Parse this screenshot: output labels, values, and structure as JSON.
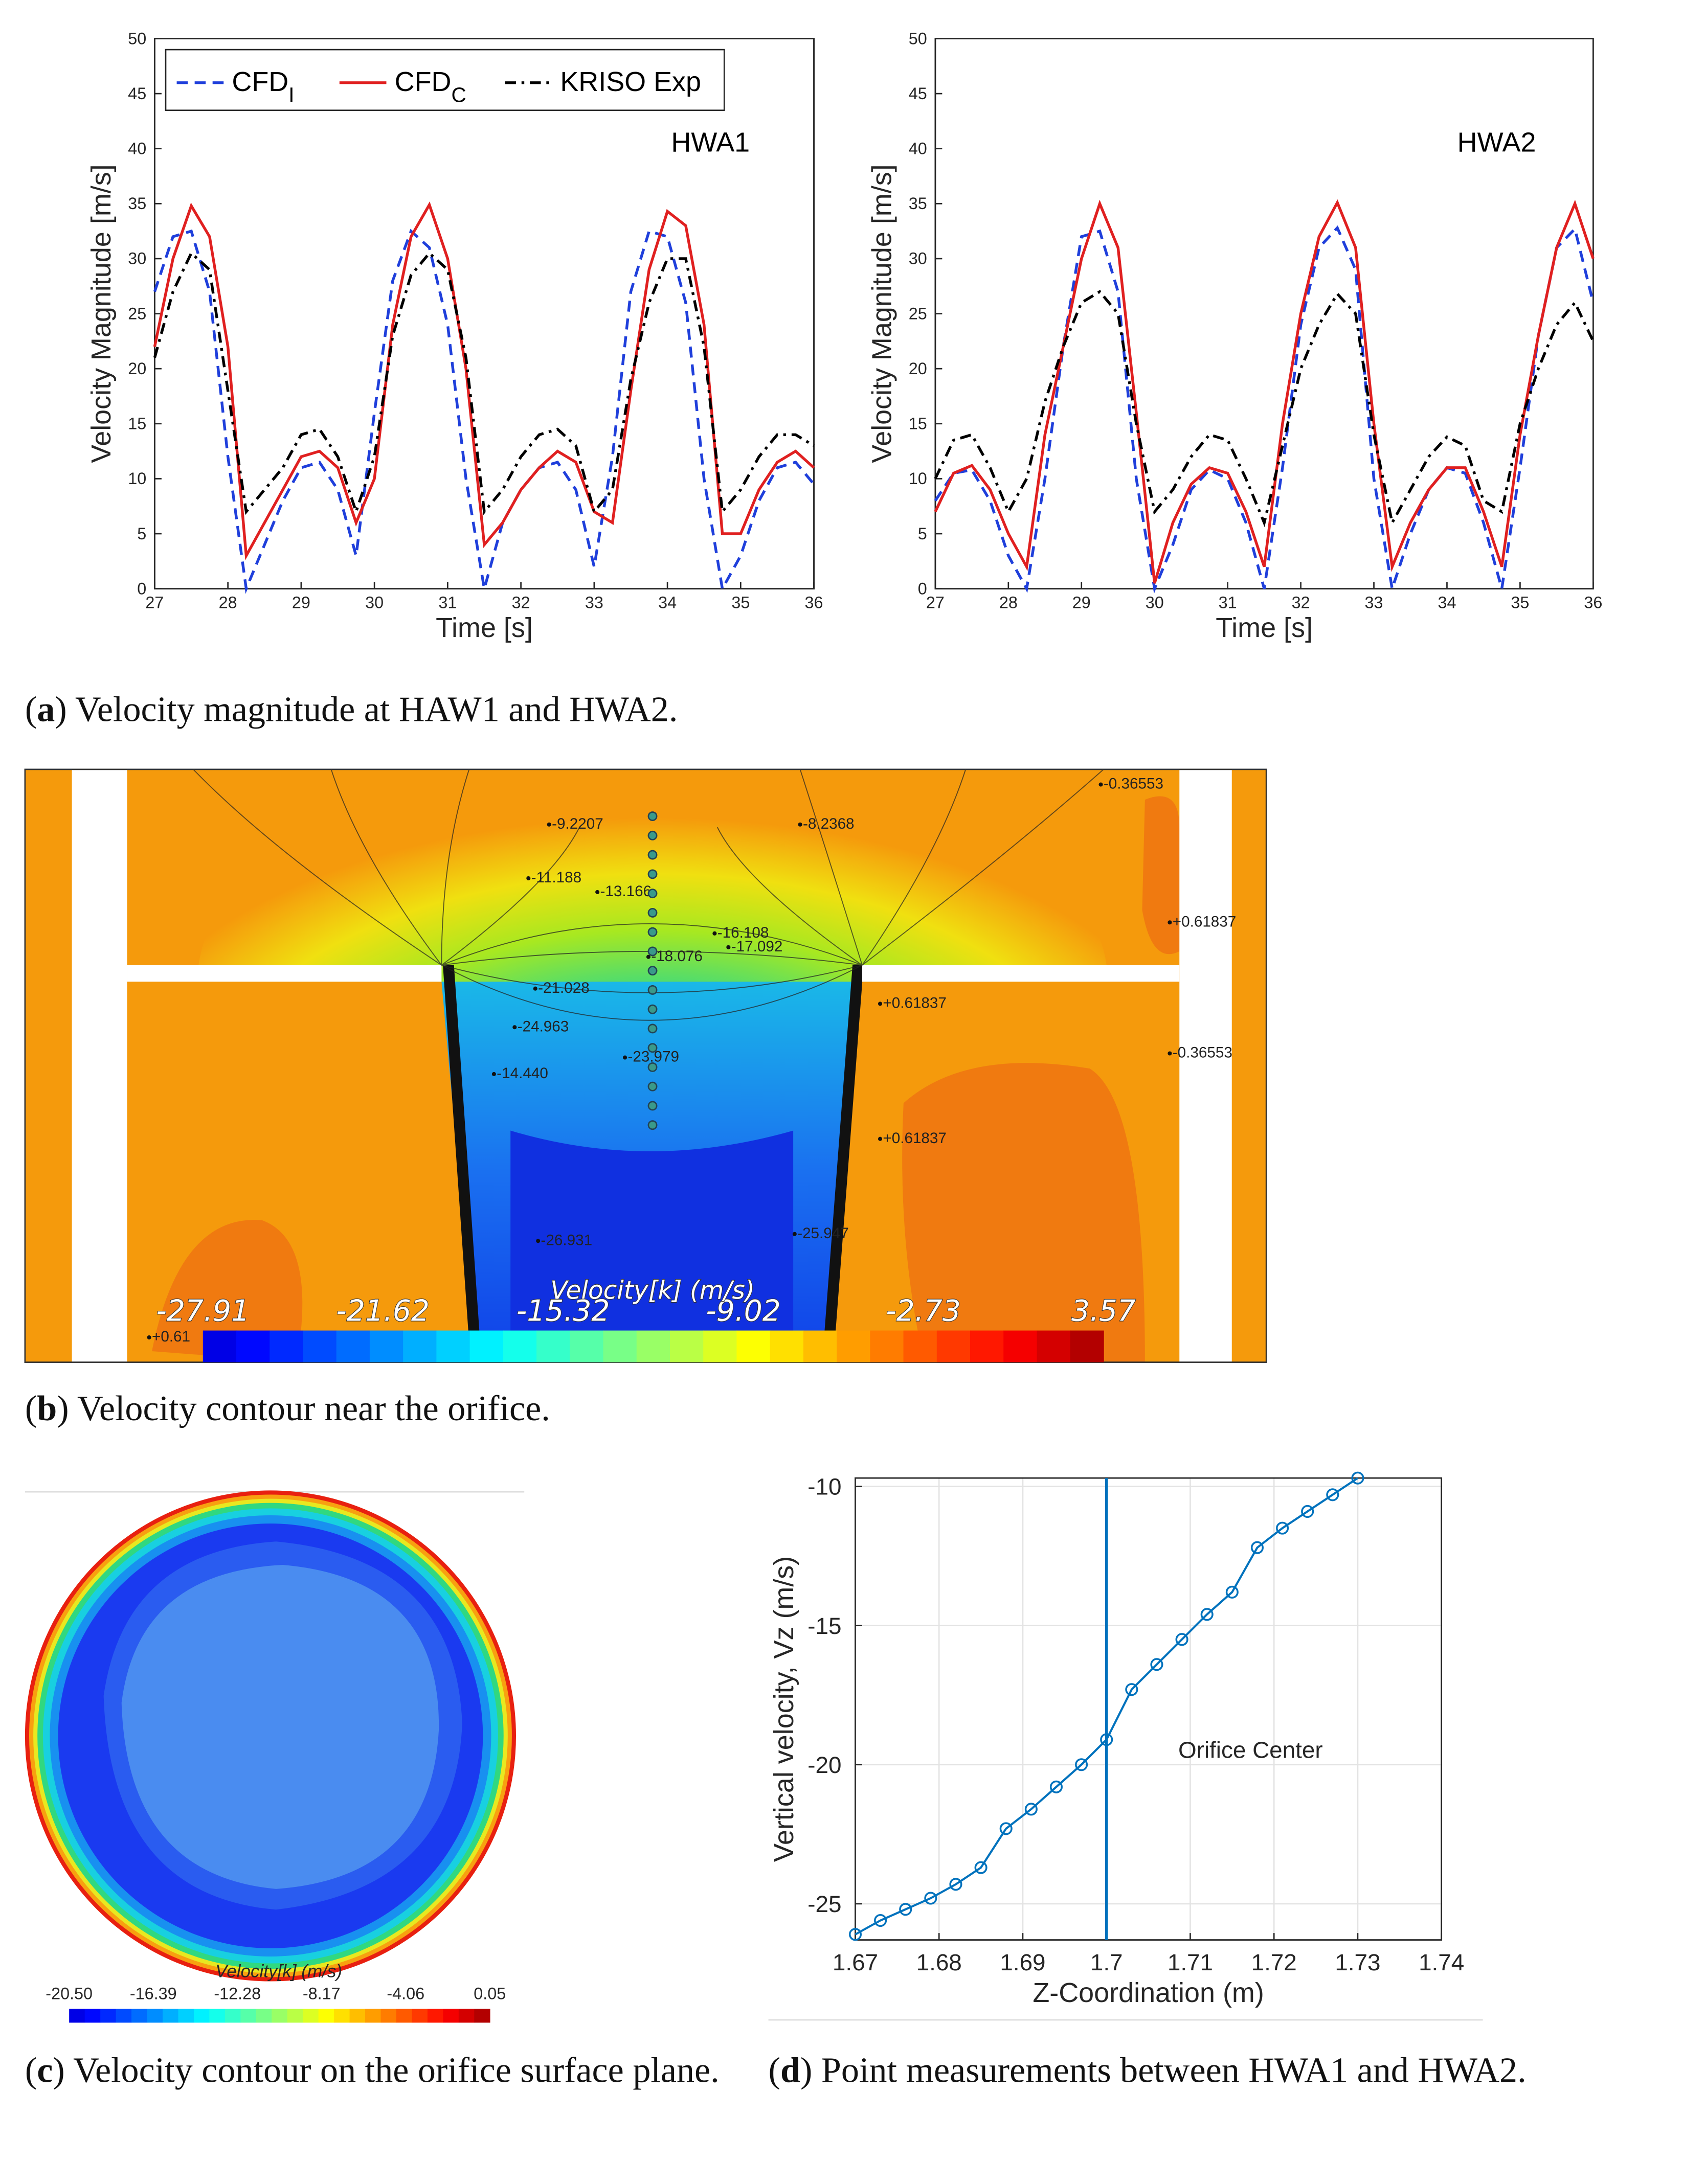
{
  "chart_data": [
    {
      "type": "line",
      "title": "HWA1",
      "xlabel": "Time [s]",
      "ylabel": "Velocity Magnitude [m/s]",
      "x": [
        27,
        27.25,
        27.5,
        27.75,
        28,
        28.25,
        28.5,
        28.75,
        29,
        29.25,
        29.5,
        29.75,
        30,
        30.25,
        30.5,
        30.75,
        31,
        31.25,
        31.5,
        31.75,
        32,
        32.25,
        32.5,
        32.75,
        33,
        33.25,
        33.5,
        33.75,
        34,
        34.25,
        34.5,
        34.75,
        35,
        35.25,
        35.5,
        35.75,
        36
      ],
      "series": [
        {
          "name": "CFD",
          "name_sub": "I",
          "color": "#1f3fdb",
          "dash": "dashed",
          "values": [
            27,
            32,
            32.5,
            27,
            12,
            0,
            4,
            8,
            11,
            11.5,
            9,
            3,
            16,
            28,
            32.5,
            31,
            24,
            10,
            0,
            6,
            9,
            11,
            11.5,
            9,
            2,
            12,
            27,
            32.5,
            32,
            26,
            10,
            0,
            3,
            8,
            11,
            11.5,
            9.5
          ]
        },
        {
          "name": "CFD",
          "name_sub": "C",
          "color": "#e02020",
          "dash": "solid",
          "values": [
            22,
            30,
            34.8,
            32,
            22,
            3,
            6,
            9,
            12,
            12.5,
            11,
            6,
            10,
            24,
            32,
            34.9,
            30,
            20,
            4,
            6,
            9,
            11,
            12.5,
            11.5,
            7,
            6,
            18,
            29,
            34.3,
            33,
            24,
            5,
            5,
            9,
            11.5,
            12.5,
            11
          ]
        },
        {
          "name": "KRISO Exp",
          "color": "#000000",
          "dash": "dashdot",
          "values": [
            21,
            27,
            30.5,
            29,
            18,
            7,
            9,
            11,
            14,
            14.5,
            12,
            7,
            12,
            23,
            28.5,
            30.5,
            29,
            21,
            7,
            9,
            12,
            14,
            14.5,
            13,
            7,
            9,
            19,
            26,
            30,
            30,
            22,
            7,
            9,
            12,
            14,
            14,
            13
          ]
        }
      ],
      "xlim": [
        27,
        36
      ],
      "ylim": [
        0,
        50
      ],
      "xticks": [
        27,
        28,
        29,
        30,
        31,
        32,
        33,
        34,
        35,
        36
      ],
      "yticks": [
        0,
        5,
        10,
        15,
        20,
        25,
        30,
        35,
        40,
        45,
        50
      ],
      "legend": "upper left"
    },
    {
      "type": "line",
      "title": "HWA2",
      "xlabel": "Time [s]",
      "ylabel": "Velocity Magnitude [m/s]",
      "x": [
        27,
        27.25,
        27.5,
        27.75,
        28,
        28.25,
        28.5,
        28.75,
        29,
        29.25,
        29.5,
        29.75,
        30,
        30.25,
        30.5,
        30.75,
        31,
        31.25,
        31.5,
        31.75,
        32,
        32.25,
        32.5,
        32.75,
        33,
        33.25,
        33.5,
        33.75,
        34,
        34.25,
        34.5,
        34.75,
        35,
        35.25,
        35.5,
        35.75,
        36
      ],
      "series": [
        {
          "color": "#1f3fdb",
          "dash": "dashed",
          "values": [
            8,
            10.5,
            10.8,
            8,
            3,
            0,
            10,
            22,
            32,
            32.5,
            27,
            10,
            0,
            4,
            9,
            10.8,
            10,
            6,
            0,
            11,
            24,
            31,
            32.8,
            29,
            10,
            0,
            5,
            9,
            11,
            10.5,
            6,
            0,
            11,
            23,
            31,
            32.7,
            26
          ]
        },
        {
          "color": "#e02020",
          "dash": "solid",
          "values": [
            7,
            10.5,
            11.2,
            9,
            5,
            2,
            14,
            22,
            30,
            35,
            31,
            16,
            0.5,
            6,
            9.5,
            11,
            10.5,
            7,
            2,
            15,
            25,
            32,
            35.1,
            31,
            15,
            2,
            6,
            9,
            11,
            11,
            7,
            2,
            14,
            23,
            31,
            35,
            30
          ]
        },
        {
          "color": "#000000",
          "dash": "dashdot",
          "values": [
            10,
            13.5,
            14,
            11,
            7,
            10,
            17,
            22,
            26,
            27,
            25,
            15,
            7,
            9,
            12,
            14,
            13.5,
            10,
            6,
            13,
            20,
            24,
            26.8,
            25,
            14,
            6,
            9,
            12,
            13.8,
            13,
            8,
            7,
            15,
            20,
            24,
            26,
            22.5
          ]
        }
      ],
      "xlim": [
        27,
        36
      ],
      "ylim": [
        0,
        50
      ],
      "xticks": [
        27,
        28,
        29,
        30,
        31,
        32,
        33,
        34,
        35,
        36
      ],
      "yticks": [
        0,
        5,
        10,
        15,
        20,
        25,
        30,
        35,
        40,
        45,
        50
      ]
    },
    {
      "type": "line",
      "xlabel": "Z-Coordination (m)",
      "ylabel": "Vertical velocity, Vz (m/s)",
      "x": [
        1.67,
        1.673,
        1.676,
        1.679,
        1.682,
        1.685,
        1.688,
        1.691,
        1.694,
        1.697,
        1.7,
        1.703,
        1.706,
        1.709,
        1.712,
        1.715,
        1.718,
        1.721,
        1.724,
        1.727,
        1.73
      ],
      "series": [
        {
          "color": "#0072bd",
          "dash": "solid",
          "marker": "circle",
          "values": [
            -26.1,
            -25.6,
            -25.2,
            -24.8,
            -24.3,
            -23.7,
            -22.3,
            -21.6,
            -20.8,
            -20,
            -19.1,
            -17.3,
            -16.4,
            -15.5,
            -14.6,
            -13.8,
            -12.2,
            -11.5,
            -10.9,
            -10.3,
            -9.7
          ]
        }
      ],
      "xlim": [
        1.67,
        1.74
      ],
      "ylim": [
        -26.3,
        -9.7
      ],
      "xticks": [
        1.67,
        1.68,
        1.69,
        1.7,
        1.71,
        1.72,
        1.73,
        1.74
      ],
      "yticks": [
        -25,
        -20,
        -15,
        -10
      ],
      "grid": true,
      "vline": 1.7,
      "annotation": "Orifice Center"
    }
  ],
  "figure_b": {
    "colorbar_title": "Velocity[k] (m/s)",
    "colorbar_ticks": [
      -27.91,
      -21.62,
      -15.32,
      -9.02,
      -2.73,
      3.57
    ],
    "contour_labels": [
      "-9.2207",
      "-8.2368",
      "-0.36553",
      "+0.61837",
      "-11.188",
      "-13.166",
      "-16.108",
      "-17.092",
      "-18.076",
      "-21.028",
      "-24.963",
      "-23.979",
      "+0.61837",
      "-0.36553",
      "+0.61837",
      "-14.440",
      "-26.931",
      "-25.947",
      "+0.61"
    ]
  },
  "figure_c": {
    "colorbar_title": "Velocity[k] (m/s)",
    "colorbar_ticks": [
      {
        "value": -20.5,
        "label": "-20.50"
      },
      {
        "value": -16.39,
        "label": "-16.39"
      },
      {
        "value": -12.28,
        "label": "-12.28"
      },
      {
        "value": -8.17,
        "label": "-8.17"
      },
      {
        "value": -4.06,
        "label": "-4.06"
      },
      {
        "value": 0.05,
        "label": "0.05"
      }
    ]
  },
  "captions": [
    {
      "label": "a",
      "text": "Velocity magnitude at HAW1 and HWA2."
    },
    {
      "label": "b",
      "text": "Velocity contour near the orifice."
    },
    {
      "label": "c",
      "text": "Velocity contour on the orifice surface plane."
    },
    {
      "label": "d",
      "text": "Point measurements between HWA1 and HWA2."
    }
  ]
}
